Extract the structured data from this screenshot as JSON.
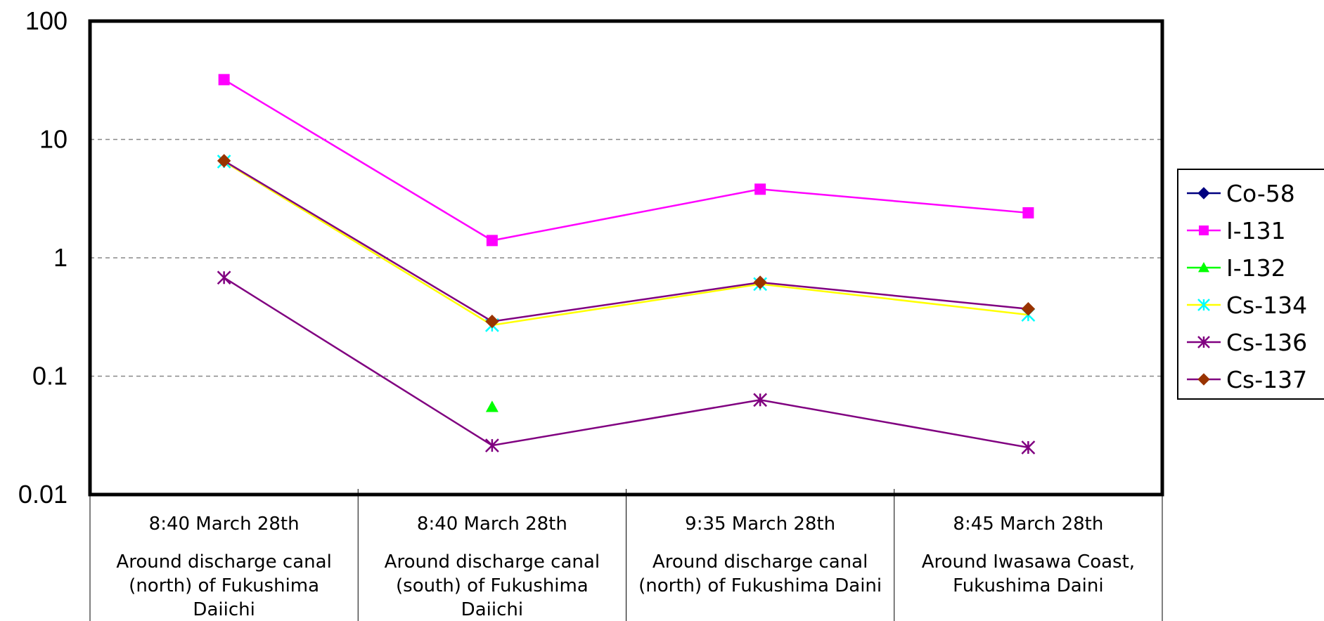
{
  "chart_data": {
    "type": "line",
    "title": "",
    "xlabel": "",
    "ylabel": "",
    "y_scale": "log",
    "ylim": [
      0.01,
      100
    ],
    "y_ticks": [
      "100",
      "10",
      "1",
      "0.1",
      "0.01"
    ],
    "grid": "horizontal-dashed",
    "legend_position": "right",
    "categories": [
      {
        "time": "8:40 March 28th",
        "lines": [
          "Around discharge canal",
          "(north) of Fukushima",
          "Daiichi"
        ]
      },
      {
        "time": "8:40 March 28th",
        "lines": [
          "Around discharge canal",
          "(south) of Fukushima",
          "Daiichi"
        ]
      },
      {
        "time": "9:35 March 28th",
        "lines": [
          "Around discharge canal",
          "(north) of Fukushima Daini"
        ]
      },
      {
        "time": "8:45 March 28th",
        "lines": [
          "Around Iwasawa Coast,",
          "Fukushima Daini"
        ]
      }
    ],
    "series": [
      {
        "name": "Co-58",
        "color": "#000080",
        "marker": "diamond",
        "values": [
          null,
          null,
          null,
          null
        ]
      },
      {
        "name": "I-131",
        "color": "#ff00ff",
        "marker": "square",
        "values": [
          32,
          1.4,
          3.8,
          2.4
        ]
      },
      {
        "name": "I-132",
        "color": "#00ff00",
        "marker": "triangle",
        "values": [
          null,
          0.055,
          null,
          null
        ]
      },
      {
        "name": "Cs-134",
        "color": "#00ffff",
        "line_color": "#ffff00",
        "marker": "x-star",
        "values": [
          6.5,
          0.27,
          0.6,
          0.33
        ]
      },
      {
        "name": "Cs-136",
        "color": "#800080",
        "marker": "asterisk",
        "values": [
          0.68,
          0.026,
          0.063,
          0.025
        ]
      },
      {
        "name": "Cs-137",
        "color": "#993300",
        "line_color": "#800080",
        "marker": "diamond",
        "values": [
          6.6,
          0.29,
          0.62,
          0.37
        ]
      }
    ]
  }
}
